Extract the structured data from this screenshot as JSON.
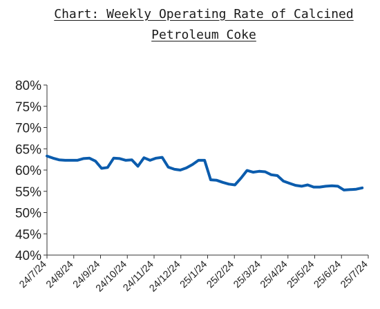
{
  "chart_data": {
    "type": "line",
    "title_lines": [
      "Chart: Weekly Operating Rate of Calcined",
      "Petroleum Coke"
    ],
    "xlabel": "",
    "ylabel": "",
    "ylim": [
      40,
      80
    ],
    "y_ticks": [
      "40%",
      "45%",
      "50%",
      "55%",
      "60%",
      "65%",
      "70%",
      "75%",
      "80%"
    ],
    "x_ticks": [
      "24/7/24",
      "24/8/24",
      "24/9/24",
      "24/10/24",
      "24/11/24",
      "24/12/24",
      "25/1/24",
      "25/2/24",
      "25/3/24",
      "25/4/24",
      "25/5/24",
      "25/6/24",
      "25/7/24"
    ],
    "grid": false,
    "legend": "none",
    "series": [
      {
        "color": "#0b5cad",
        "x": [
          "2024-07-24",
          "2024-07-31",
          "2024-08-07",
          "2024-08-14",
          "2024-08-21",
          "2024-08-28",
          "2024-09-04",
          "2024-09-11",
          "2024-09-18",
          "2024-09-25",
          "2024-10-02",
          "2024-10-09",
          "2024-10-16",
          "2024-10-23",
          "2024-10-30",
          "2024-11-06",
          "2024-11-13",
          "2024-11-20",
          "2024-11-27",
          "2024-12-04",
          "2024-12-11",
          "2024-12-18",
          "2024-12-25",
          "2025-01-01",
          "2025-01-08",
          "2025-01-15",
          "2025-01-22",
          "2025-01-29",
          "2025-02-05",
          "2025-02-12",
          "2025-02-19",
          "2025-02-26",
          "2025-03-05",
          "2025-03-12",
          "2025-03-19",
          "2025-03-26",
          "2025-04-02",
          "2025-04-09",
          "2025-04-16",
          "2025-04-23",
          "2025-04-30",
          "2025-05-07",
          "2025-05-14",
          "2025-05-21",
          "2025-05-28",
          "2025-06-04",
          "2025-06-11",
          "2025-06-18",
          "2025-06-25",
          "2025-07-02",
          "2025-07-09",
          "2025-07-16",
          "2025-07-23"
        ],
        "values": [
          63.3,
          62.8,
          62.4,
          62.3,
          62.3,
          62.3,
          62.7,
          62.8,
          62.1,
          60.4,
          60.6,
          62.8,
          62.7,
          62.3,
          62.4,
          60.9,
          62.9,
          62.3,
          62.8,
          63.0,
          60.7,
          60.2,
          60.0,
          60.5,
          61.3,
          62.3,
          62.3,
          57.7,
          57.6,
          57.1,
          56.7,
          56.5,
          58.1,
          59.9,
          59.5,
          59.7,
          59.6,
          58.9,
          58.7,
          57.4,
          56.9,
          56.4,
          56.2,
          56.5,
          56.0,
          56.0,
          56.2,
          56.3,
          56.2,
          55.3,
          55.4,
          55.5,
          55.8
        ]
      }
    ]
  }
}
